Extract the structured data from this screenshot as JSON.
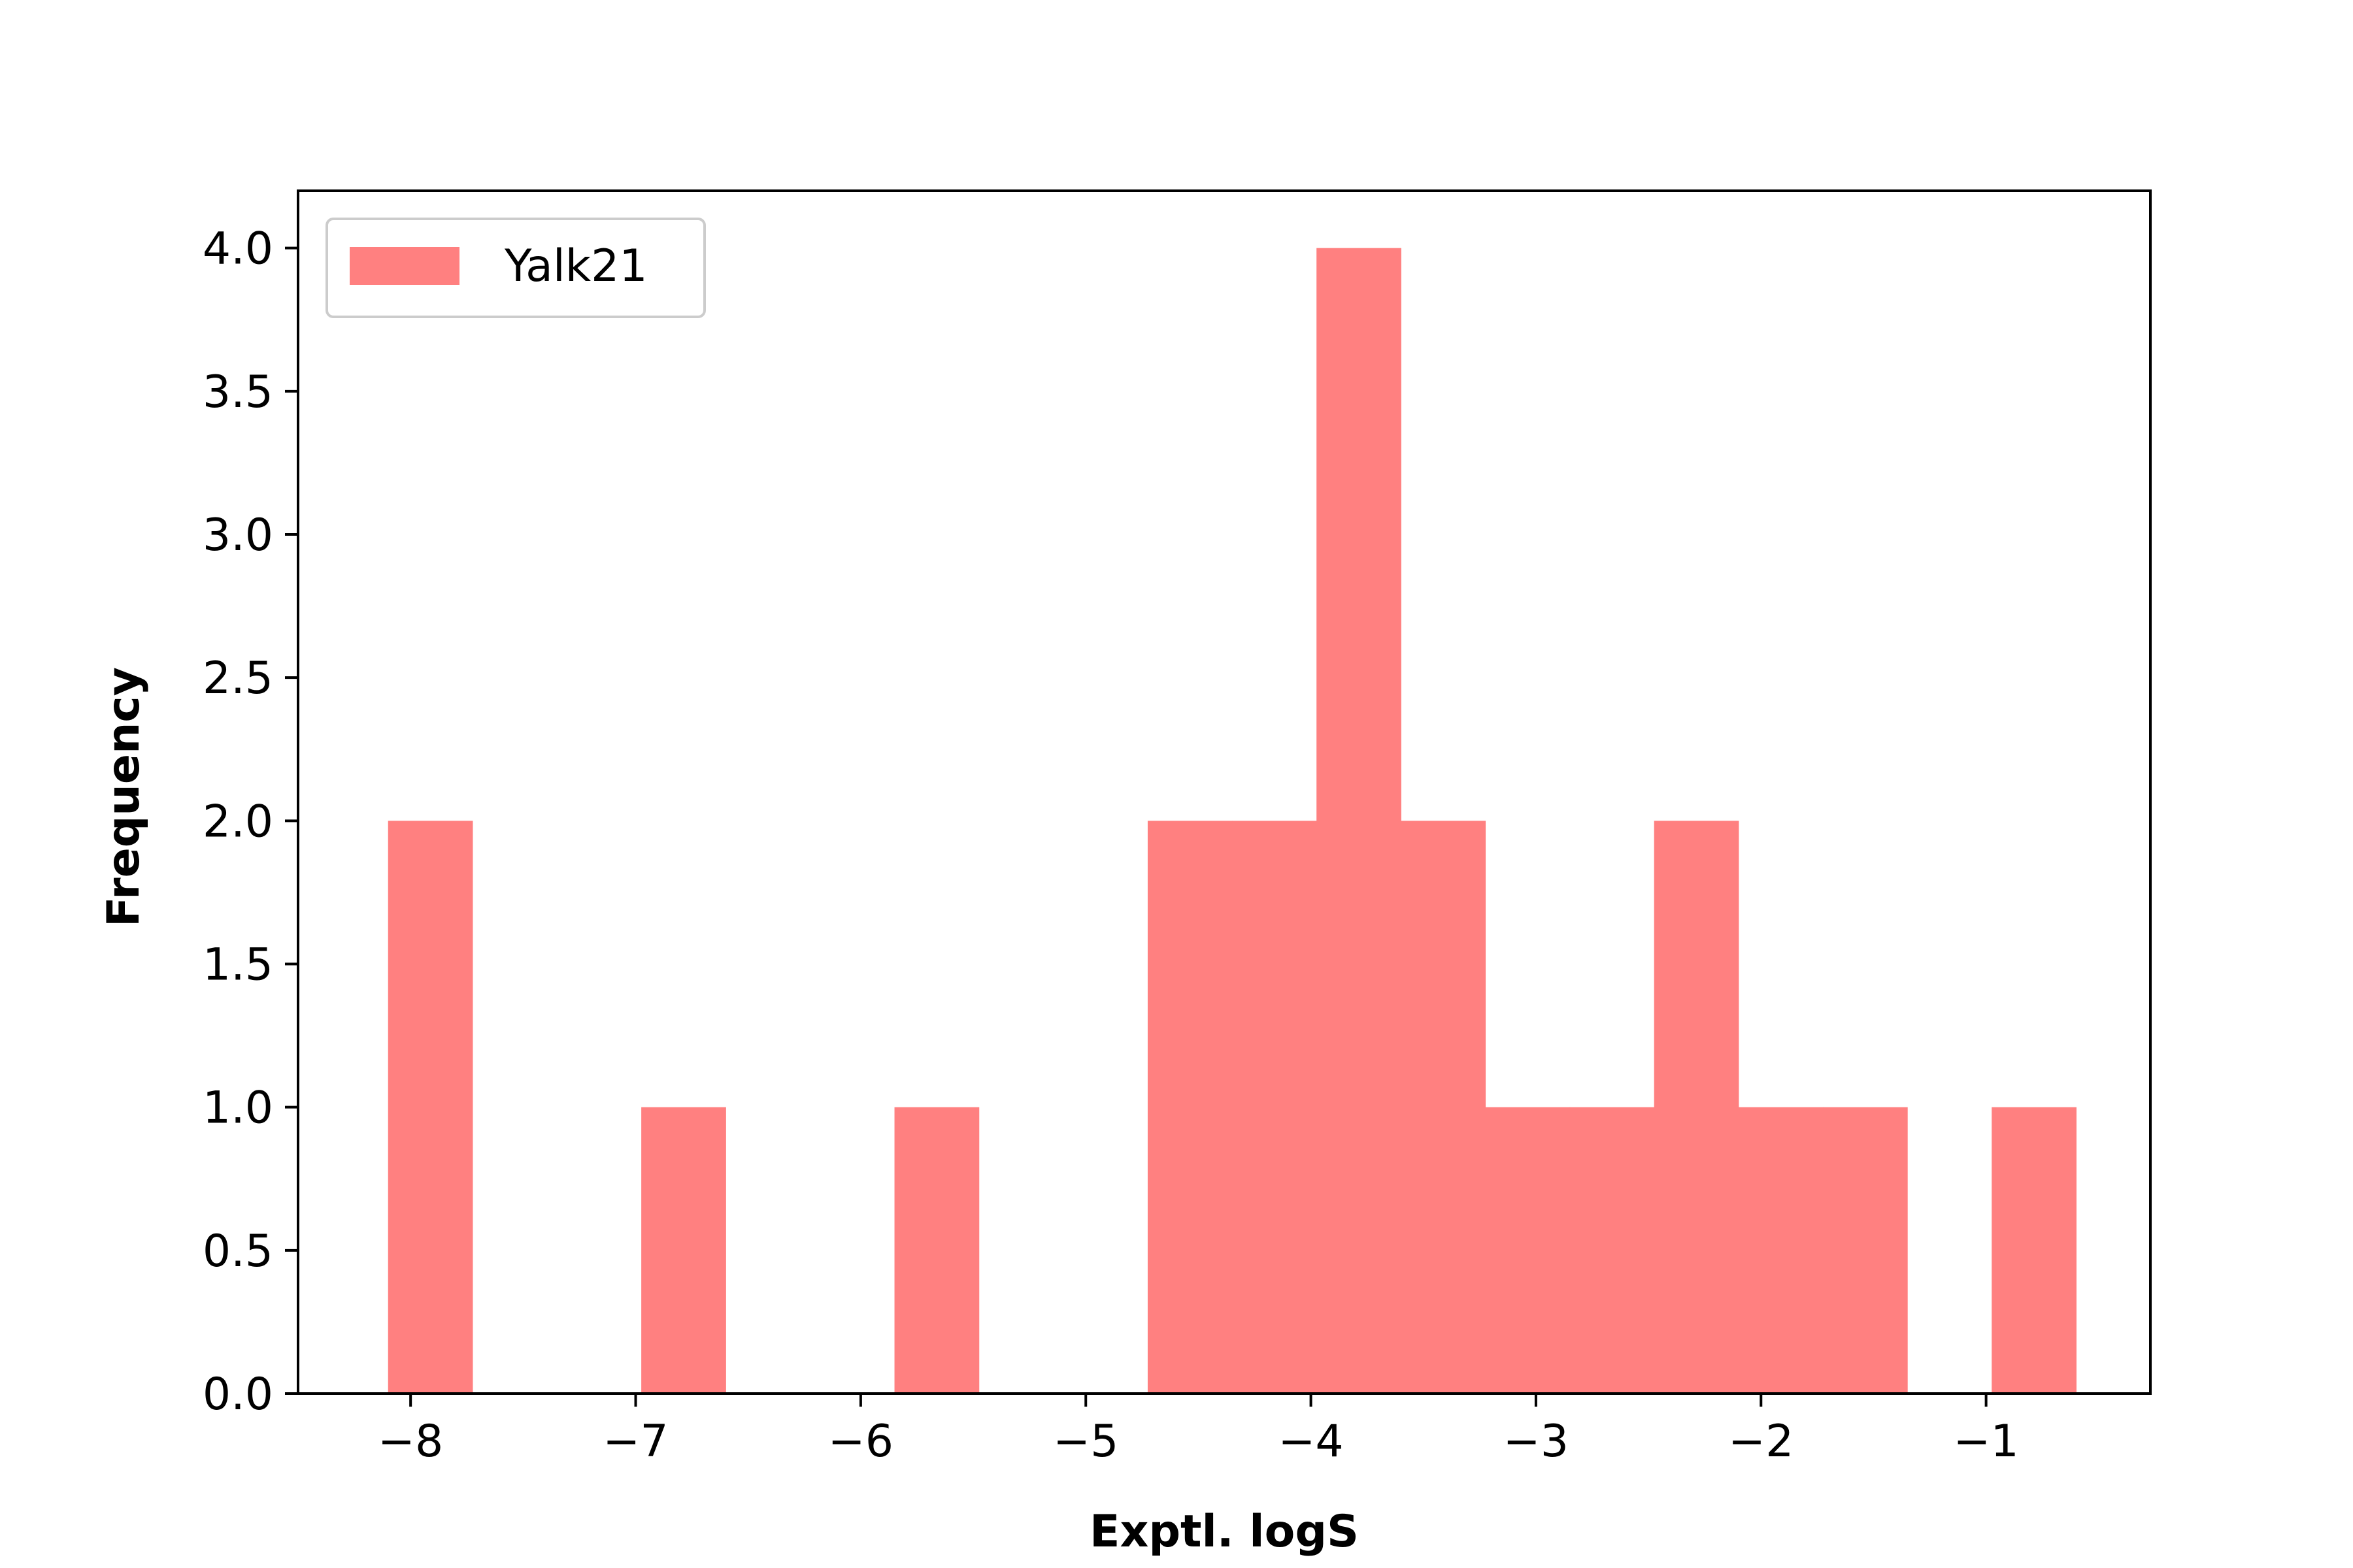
{
  "chart_data": {
    "type": "bar",
    "xlabel": "Exptl. logS",
    "ylabel": "Frequency",
    "xlim": [
      -8.5,
      -0.27
    ],
    "ylim": [
      0,
      4.2
    ],
    "xticks": [
      -8,
      -7,
      -6,
      -5,
      -4,
      -3,
      -2,
      -1
    ],
    "xtick_labels": [
      "−8",
      "−7",
      "−6",
      "−5",
      "−4",
      "−3",
      "−2",
      "−1"
    ],
    "yticks": [
      0.0,
      0.5,
      1.0,
      1.5,
      2.0,
      2.5,
      3.0,
      3.5,
      4.0
    ],
    "ytick_labels": [
      "0.0",
      "0.5",
      "1.0",
      "1.5",
      "2.0",
      "2.5",
      "3.0",
      "3.5",
      "4.0"
    ],
    "bin_edges": [
      -8.1,
      -7.725,
      -7.35,
      -6.975,
      -6.6,
      -6.225,
      -5.85,
      -5.475,
      -5.1,
      -4.725,
      -4.35,
      -3.975,
      -3.6,
      -3.225,
      -2.85,
      -2.475,
      -2.1,
      -1.725,
      -1.35,
      -0.975,
      -0.6
    ],
    "series": [
      {
        "name": "Yalk21",
        "color": "#ff8080",
        "values": [
          2,
          0,
          0,
          1,
          0,
          0,
          1,
          0,
          0,
          2,
          2,
          4,
          2,
          1,
          1,
          2,
          1,
          1,
          0,
          1
        ]
      }
    ],
    "legend": {
      "position": "top-left",
      "entries": [
        "Yalk21"
      ]
    },
    "grid": false
  }
}
